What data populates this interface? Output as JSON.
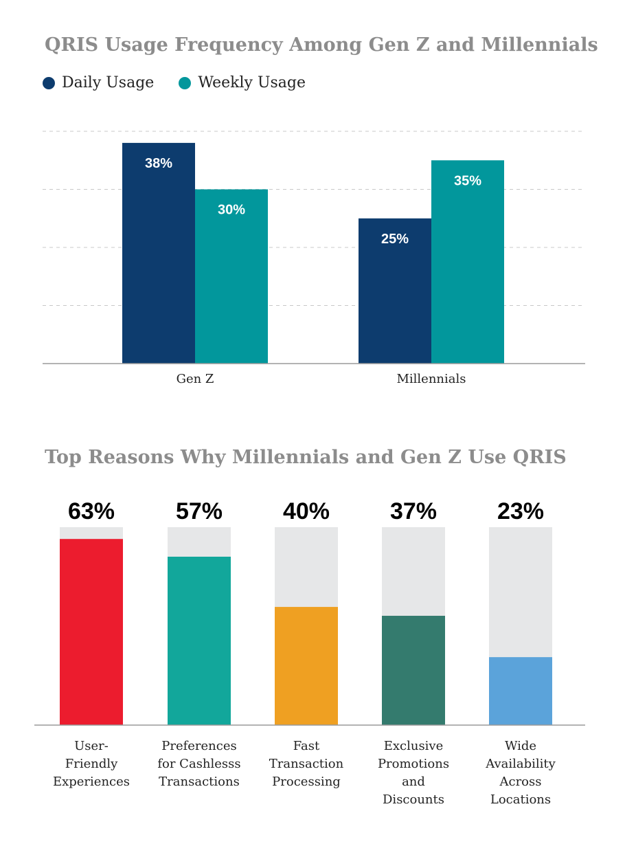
{
  "chart_data": [
    {
      "type": "bar",
      "title": "QRIS Usage Frequency Among Gen Z and Millennials",
      "categories": [
        "Gen Z",
        "Millennials"
      ],
      "series": [
        {
          "name": "Daily Usage",
          "values": [
            38,
            25
          ],
          "labels": [
            "38%",
            "25%"
          ],
          "color": "#0d3c6e"
        },
        {
          "name": "Weekly Usage",
          "values": [
            30,
            35
          ],
          "labels": [
            "30%",
            "35%"
          ],
          "color": "#02979c"
        }
      ],
      "ylim": [
        0,
        40
      ],
      "grid": true,
      "legend": "top-left"
    },
    {
      "type": "bar",
      "title": "Top Reasons Why Millennials and Gen Z Use QRIS",
      "categories": [
        [
          "User-",
          "Friendly",
          "Experiences"
        ],
        [
          "Preferences",
          "for Cashlesss",
          "Transactions"
        ],
        [
          "Fast",
          "Transaction",
          "Processing"
        ],
        [
          "Exclusive",
          "Promotions",
          "and",
          "Discounts"
        ],
        [
          "Wide",
          "Availability",
          "Across",
          "Locations"
        ]
      ],
      "values": [
        63,
        57,
        40,
        37,
        23
      ],
      "labels": [
        "63%",
        "57%",
        "40%",
        "37%",
        "23%"
      ],
      "colors": [
        "#ec1c2e",
        "#12a79b",
        "#efa022",
        "#347b6e",
        "#5ba3da"
      ],
      "track_color": "#e6e7e8",
      "ylim": [
        0,
        67
      ]
    }
  ]
}
